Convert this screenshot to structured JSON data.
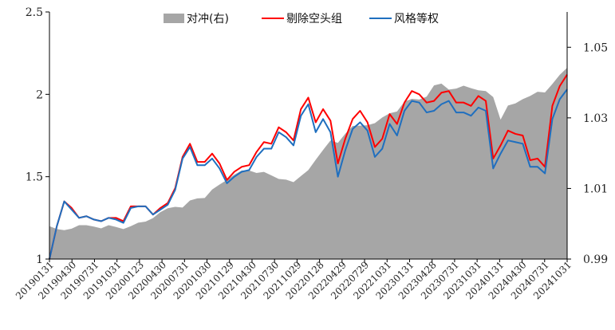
{
  "chart_data": {
    "type": "line",
    "legend_placement": "top",
    "grid": false,
    "title": "",
    "xlabel": "",
    "ylabel": "",
    "ylim_left": [
      1,
      2.5
    ],
    "ylim_right": [
      0.99,
      1.06
    ],
    "left_ticks": [
      {
        "value": 1,
        "label": "1"
      },
      {
        "value": 1.5,
        "label": "1.5"
      },
      {
        "value": 2,
        "label": "2"
      },
      {
        "value": 2.5,
        "label": "2.5"
      }
    ],
    "right_ticks": [
      {
        "value": 0.99,
        "label": "0.99"
      },
      {
        "value": 1.01,
        "label": "1.01"
      },
      {
        "value": 1.03,
        "label": "1.03"
      },
      {
        "value": 1.05,
        "label": "1.05"
      }
    ],
    "x_tick_labels": [
      "20190131",
      "20190430",
      "20190731",
      "20191031",
      "20200123",
      "20200430",
      "20200731",
      "20201030",
      "20210129",
      "20210430",
      "20210730",
      "20211029",
      "20220128",
      "20220429",
      "20220729",
      "20221031",
      "20230131",
      "20230428",
      "20230731",
      "20231031",
      "20240131",
      "20240430",
      "20240731",
      "20241031"
    ],
    "series": [
      {
        "name": "对冲(右)",
        "kind": "area",
        "axis": "right",
        "color": "#a6a6a6",
        "values": [
          0.9993,
          0.9985,
          0.9982,
          0.9986,
          0.9996,
          0.9996,
          0.9992,
          0.9987,
          0.9996,
          0.9991,
          0.9985,
          0.9993,
          1.0003,
          1.0006,
          1.0016,
          1.0033,
          1.0044,
          1.0048,
          1.0046,
          1.0066,
          1.0072,
          1.0073,
          1.0097,
          1.0111,
          1.0124,
          1.0139,
          1.0151,
          1.0151,
          1.0144,
          1.0147,
          1.0137,
          1.0127,
          1.0125,
          1.0118,
          1.0135,
          1.0152,
          1.0181,
          1.0209,
          1.0236,
          1.0229,
          1.0255,
          1.0277,
          1.0278,
          1.0279,
          1.0285,
          1.0301,
          1.0313,
          1.0318,
          1.0346,
          1.0354,
          1.0352,
          1.036,
          1.0392,
          1.0397,
          1.038,
          1.0383,
          1.0391,
          1.0384,
          1.0378,
          1.0376,
          1.0359,
          1.0295,
          1.0335,
          1.0341,
          1.0353,
          1.0362,
          1.0374,
          1.0372,
          1.0396,
          1.0422,
          1.0442
        ]
      },
      {
        "name": "剔除空头组",
        "kind": "line",
        "axis": "left",
        "color": "#ff0000",
        "values": [
          1.0,
          1.2,
          1.35,
          1.31,
          1.25,
          1.26,
          1.24,
          1.23,
          1.25,
          1.25,
          1.23,
          1.32,
          1.32,
          1.32,
          1.27,
          1.31,
          1.34,
          1.43,
          1.62,
          1.7,
          1.59,
          1.59,
          1.64,
          1.58,
          1.48,
          1.53,
          1.56,
          1.57,
          1.65,
          1.71,
          1.7,
          1.8,
          1.77,
          1.72,
          1.91,
          1.98,
          1.83,
          1.91,
          1.84,
          1.58,
          1.73,
          1.85,
          1.9,
          1.83,
          1.68,
          1.73,
          1.88,
          1.82,
          1.95,
          2.02,
          2.0,
          1.95,
          1.96,
          2.01,
          2.02,
          1.95,
          1.95,
          1.93,
          1.99,
          1.96,
          1.61,
          1.69,
          1.78,
          1.76,
          1.75,
          1.6,
          1.61,
          1.56,
          1.93,
          2.05,
          2.12
        ]
      },
      {
        "name": "风格等权",
        "kind": "line",
        "axis": "left",
        "color": "#1f6fbf",
        "values": [
          1.0,
          1.2,
          1.35,
          1.3,
          1.25,
          1.26,
          1.24,
          1.23,
          1.25,
          1.24,
          1.22,
          1.31,
          1.32,
          1.32,
          1.27,
          1.3,
          1.33,
          1.42,
          1.61,
          1.68,
          1.57,
          1.57,
          1.61,
          1.55,
          1.46,
          1.5,
          1.53,
          1.54,
          1.62,
          1.67,
          1.67,
          1.77,
          1.74,
          1.69,
          1.87,
          1.94,
          1.77,
          1.85,
          1.77,
          1.5,
          1.66,
          1.79,
          1.83,
          1.78,
          1.62,
          1.67,
          1.82,
          1.75,
          1.9,
          1.96,
          1.95,
          1.89,
          1.9,
          1.94,
          1.96,
          1.89,
          1.89,
          1.87,
          1.92,
          1.9,
          1.55,
          1.64,
          1.72,
          1.71,
          1.7,
          1.56,
          1.56,
          1.52,
          1.85,
          1.97,
          2.03
        ]
      }
    ]
  }
}
